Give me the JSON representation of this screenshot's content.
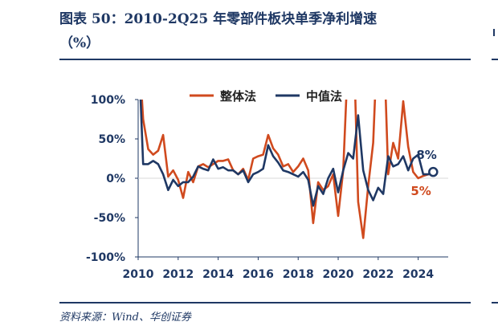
{
  "title": {
    "line1": "图表 50：2010-2Q25 年零部件板块单季净利增速",
    "line2": "（%）"
  },
  "source": "资料来源：Wind、华创证券",
  "colors": {
    "accent": "#1f3864",
    "series_overall": "#d04a1e",
    "series_median": "#1f3864"
  },
  "chart_data": {
    "type": "line",
    "title": "",
    "xlabel": "",
    "ylabel": "",
    "ylim": [
      -100,
      100
    ],
    "xlim": [
      2010,
      2025.5
    ],
    "yticks": [
      100,
      50,
      0,
      -50,
      -100
    ],
    "ytick_labels": [
      "100%",
      "50%",
      "0%",
      "-50%",
      "-100%"
    ],
    "xticks": [
      2010,
      2012,
      2014,
      2016,
      2018,
      2020,
      2022,
      2024
    ],
    "xtick_labels": [
      "2010",
      "2012",
      "2014",
      "2016",
      "2018",
      "2020",
      "2022",
      "2024"
    ],
    "legend_position": "top-center",
    "grid": false,
    "series": [
      {
        "name": "整体法",
        "color": "#d04a1e",
        "values": [
          180,
          75,
          37,
          30,
          35,
          55,
          2,
          10,
          -2,
          -25,
          8,
          -5,
          15,
          18,
          14,
          18,
          22,
          22,
          24,
          10,
          5,
          12,
          -2,
          25,
          28,
          30,
          55,
          38,
          30,
          15,
          18,
          8,
          15,
          25,
          10,
          -57,
          -5,
          -15,
          -10,
          5,
          -48,
          10,
          160,
          200,
          -30,
          -76,
          -10,
          45,
          200,
          200,
          5,
          45,
          25,
          98,
          40,
          8,
          0,
          3,
          5,
          5
        ],
        "end_label": "5%"
      },
      {
        "name": "中值法",
        "color": "#1f3864",
        "values": [
          180,
          18,
          18,
          22,
          18,
          5,
          -15,
          -2,
          -10,
          -5,
          -5,
          2,
          15,
          12,
          10,
          24,
          12,
          14,
          10,
          10,
          5,
          10,
          -5,
          5,
          8,
          12,
          42,
          28,
          20,
          10,
          8,
          5,
          2,
          8,
          -2,
          -35,
          -10,
          -20,
          0,
          12,
          -18,
          10,
          32,
          25,
          80,
          10,
          -15,
          -28,
          -12,
          -20,
          28,
          15,
          18,
          28,
          10,
          25,
          30,
          5,
          5,
          8
        ],
        "end_label": "8%"
      }
    ]
  }
}
